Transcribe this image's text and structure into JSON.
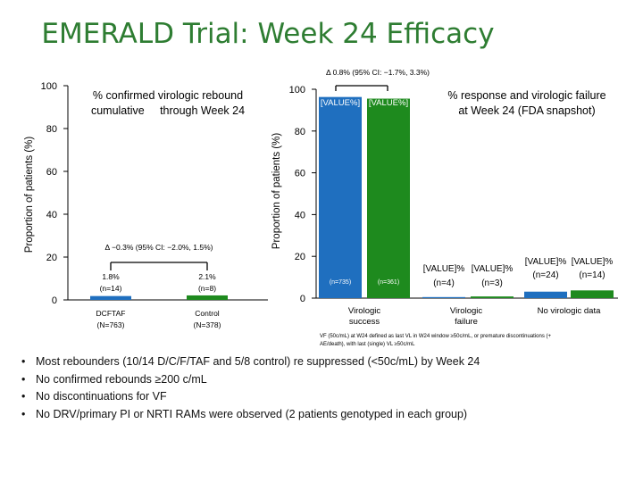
{
  "page": {
    "title": "EMERALD Trial: Week 24 Efficacy",
    "bullets": [
      "Most rebounders (10/14 D/C/F/TAF and 5/8 control) re suppressed (<50c/mL) by Week 24",
      "No confirmed rebounds ≥200 c/mL",
      "No discontinuations for VF",
      "No DRV/primary PI or NRTI RAMs were observed (2 patients genotyped in each group)"
    ]
  },
  "colors": {
    "dcftaf": "#1f6fbf",
    "control": "#1e8a1e",
    "title": "#2e7d32",
    "axis": "#000000"
  },
  "chart_data": [
    {
      "type": "bar",
      "title": "% confirmed virologic rebound cumulative through Week 24",
      "title_lines": [
        "% confirmed virologic rebound",
        "cumulative     through Week 24"
      ],
      "ylabel": "Proportion of patients (%)",
      "ylim": [
        0,
        100
      ],
      "yticks": [
        "0",
        "20",
        "40",
        "60",
        "80",
        "100"
      ],
      "categories": [
        "DCFTAF\n(N=763)",
        "Control\n(N=378)"
      ],
      "category_lines": [
        [
          "DCFTAF",
          "(N=763)"
        ],
        [
          "Control",
          "(N=378)"
        ]
      ],
      "values": [
        1.8,
        2.1
      ],
      "value_labels": [
        [
          "1.8%",
          "(n=14)"
        ],
        [
          "2.1%",
          "(n=8)"
        ]
      ],
      "annotation": "Δ −0.3% (95% CI: −2.0%, 1.5%)",
      "grid": false
    },
    {
      "type": "bar",
      "title": "% response and virologic failure at Week 24 (FDA snapshot)",
      "title_lines": [
        "% response and virologic failure",
        "at Week 24 (FDA snapshot)"
      ],
      "ylabel": "Proportion of patients (%)",
      "ylim": [
        0,
        100
      ],
      "yticks": [
        "0",
        "20",
        "40",
        "60",
        "80",
        "100"
      ],
      "categories": [
        "Virologic success",
        "Virologic failure",
        "No virologic data"
      ],
      "category_lines": [
        [
          "Virologic",
          "success"
        ],
        [
          "Virologic",
          "failure"
        ],
        [
          "No virologic data"
        ]
      ],
      "series": [
        {
          "values": [
            96.3,
            0.5,
            3.1
          ],
          "labels": [
            "[VALUE%]",
            "[VALUE]% (n=4)",
            "[VALUE]% (n=24)"
          ],
          "n_labels": [
            "(n=735)",
            "(n=4)",
            "(n=24)"
          ]
        },
        {
          "values": [
            95.5,
            0.8,
            3.7
          ],
          "labels": [
            "[VALUE%]",
            "[VALUE]% (n=3)",
            "[VALUE]% (n=14)"
          ],
          "n_labels": [
            "(n=361)",
            "(n=3)",
            "(n=14)"
          ]
        }
      ],
      "bar_value_text": [
        "[VALUE%]",
        "[VALUE%]"
      ],
      "bar_n_text": [
        "(n=735)",
        "(n=361)"
      ],
      "failure_labels": [
        "[VALUE]%",
        "[VALUE]%"
      ],
      "failure_n": [
        "(n=4)",
        "(n=3)"
      ],
      "novd_labels": [
        "[VALUE]%",
        "[VALUE]%"
      ],
      "novd_n": [
        "(n=24)",
        "(n=14)"
      ],
      "annotation": "Δ 0.8% (95% CI: −1.7%, 3.3%)",
      "footnote": "VF (50c/mL) at W24 defined as last VL in W24 window ≥50c/mL, or premature discontinuations (+ AE/death), with last (single) VL ≥50c/mL",
      "footnote_lines": [
        "VF (50c/mL) at W24 defined as last VL in W24 window ≥50c/mL, or premature discontinuations (+",
        "AE/death), with last (single) VL ≥50c/mL"
      ],
      "grid": false
    }
  ]
}
